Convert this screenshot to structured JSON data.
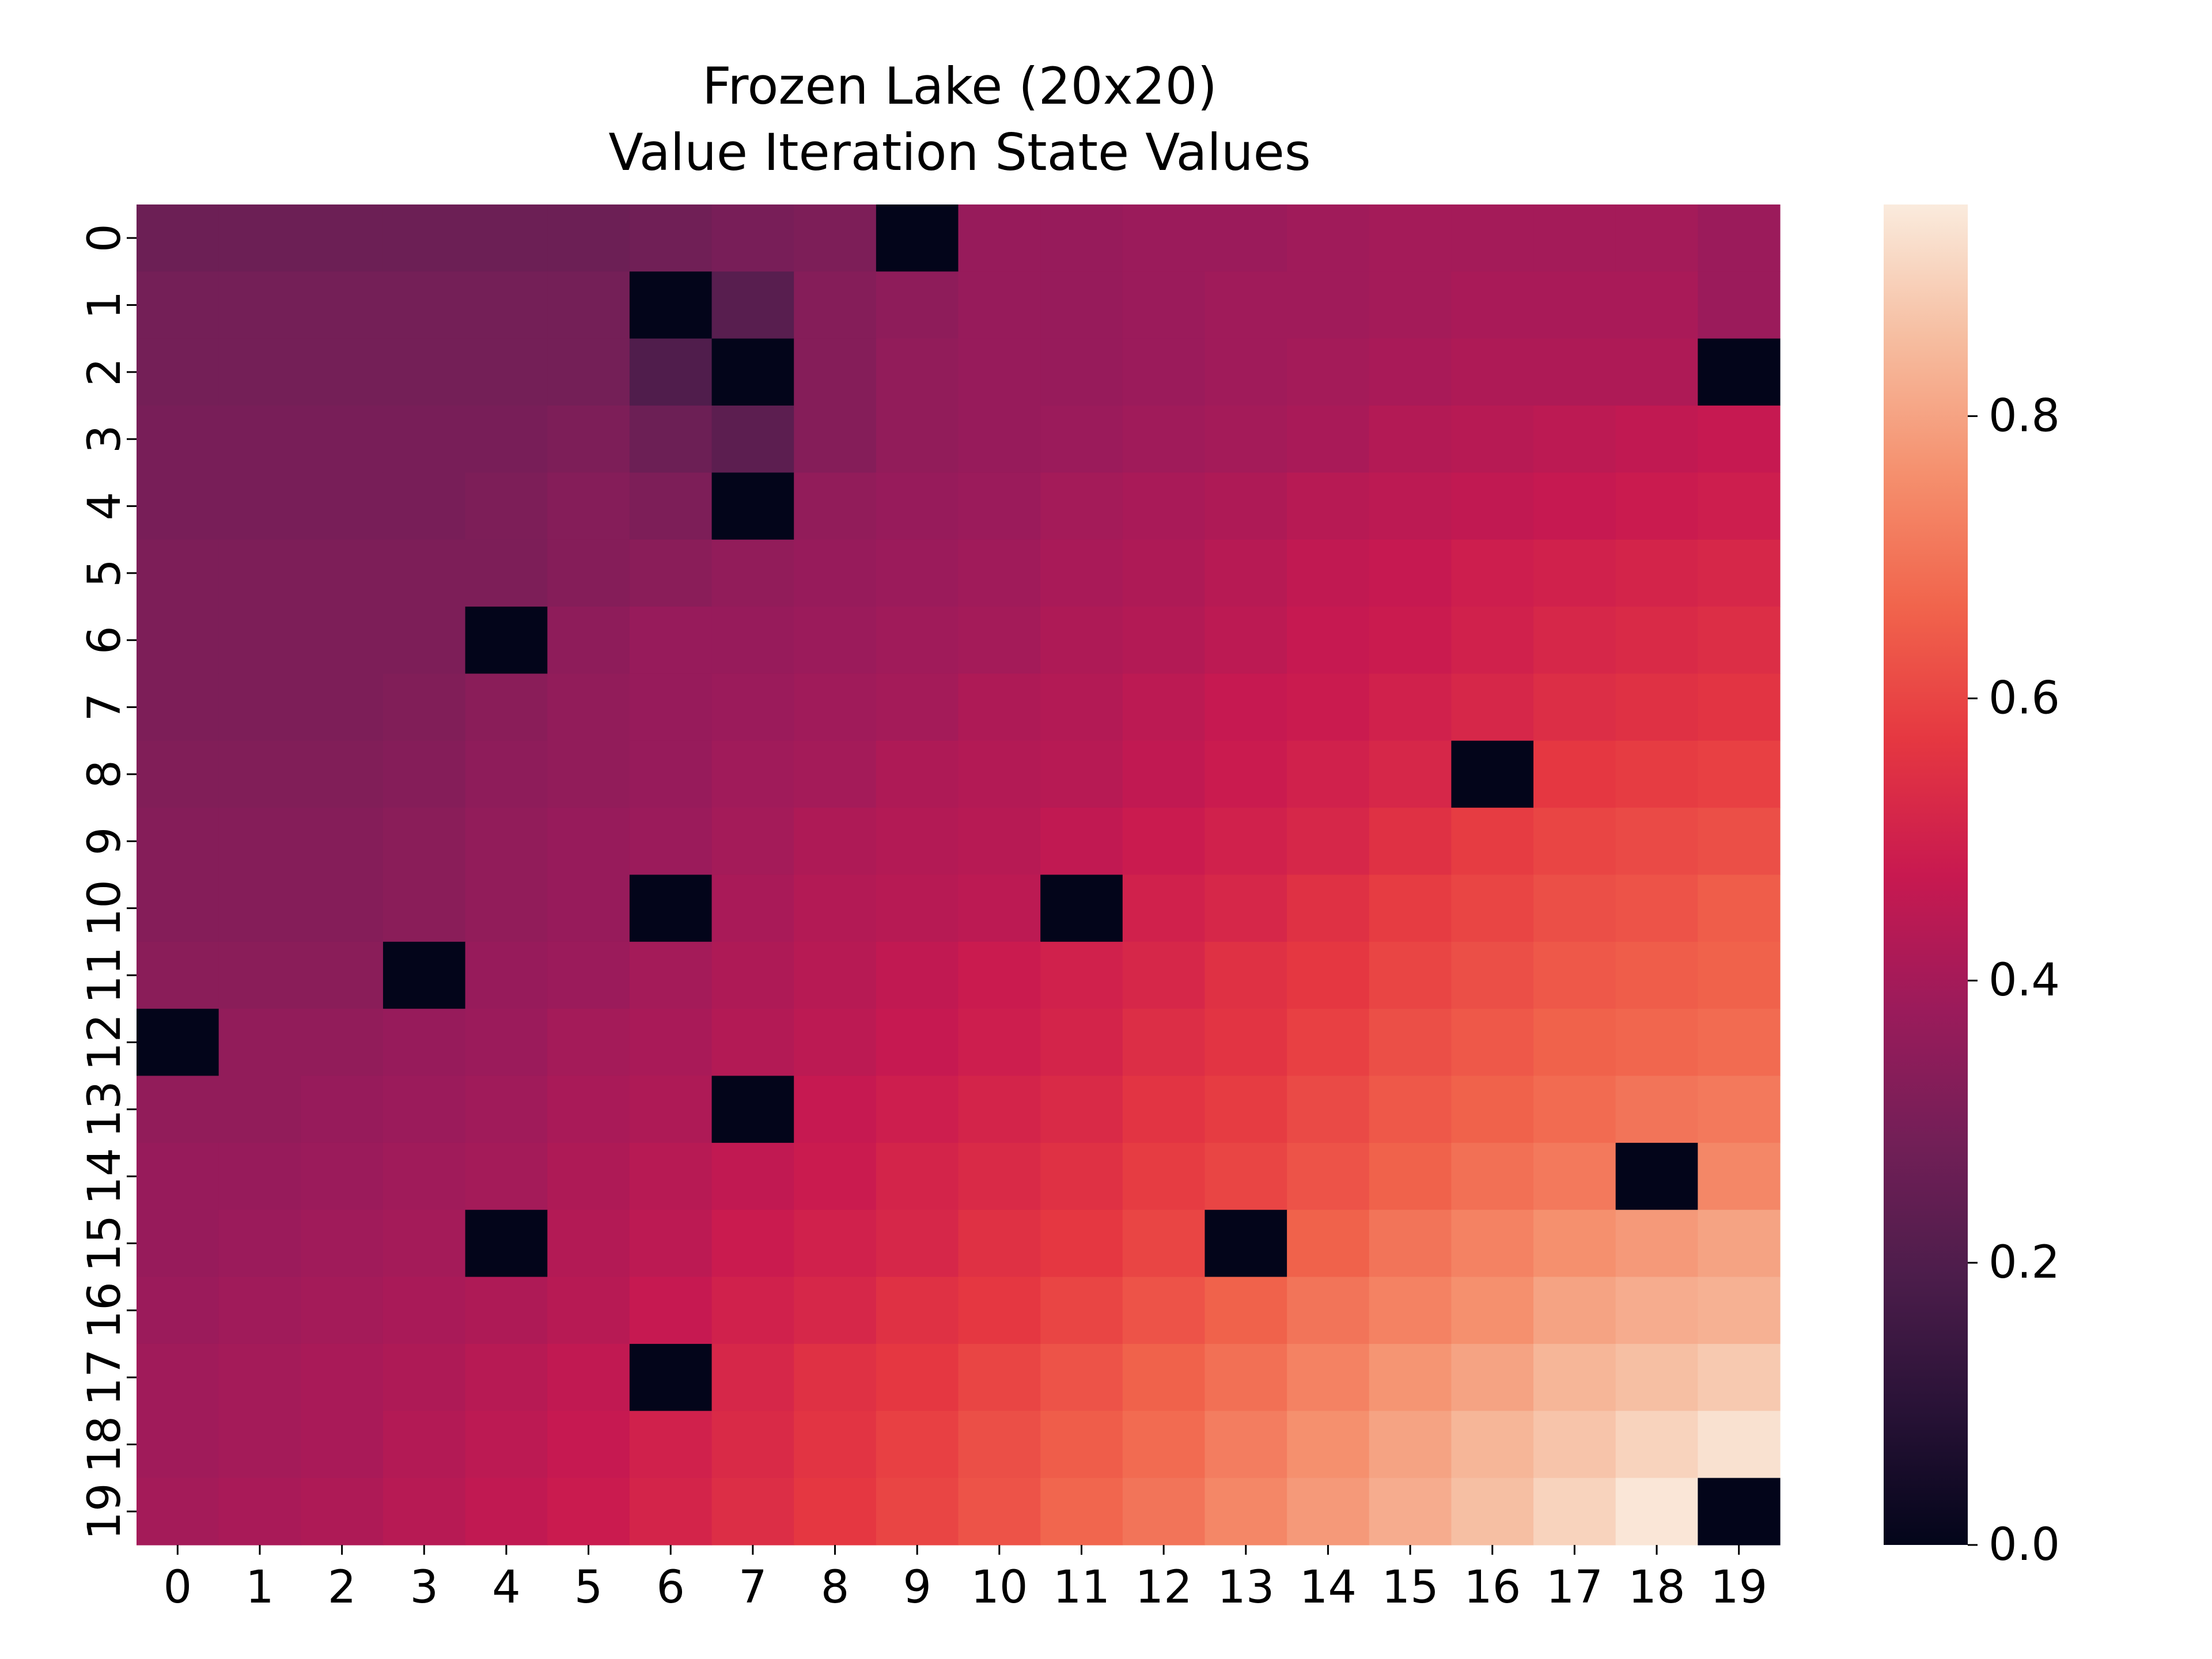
{
  "chart_data": {
    "type": "heatmap",
    "title_line1": "Frozen Lake (20x20)",
    "title_line2": "Value Iteration State Values",
    "x_ticks": [
      "0",
      "1",
      "2",
      "3",
      "4",
      "5",
      "6",
      "7",
      "8",
      "9",
      "10",
      "11",
      "12",
      "13",
      "14",
      "15",
      "16",
      "17",
      "18",
      "19"
    ],
    "y_ticks": [
      "0",
      "1",
      "2",
      "3",
      "4",
      "5",
      "6",
      "7",
      "8",
      "9",
      "10",
      "11",
      "12",
      "13",
      "14",
      "15",
      "16",
      "17",
      "18",
      "19"
    ],
    "colorbar_ticks": [
      "0.0",
      "0.2",
      "0.4",
      "0.6",
      "0.8"
    ],
    "colorbar_tick_values": [
      0.0,
      0.2,
      0.4,
      0.6,
      0.8
    ],
    "vmin": 0.0,
    "vmax": 0.95,
    "colormap": "rocket",
    "values": [
      [
        0.27,
        0.27,
        0.27,
        0.27,
        0.27,
        0.27,
        0.28,
        0.3,
        0.31,
        0.0,
        0.37,
        0.37,
        0.38,
        0.38,
        0.39,
        0.4,
        0.4,
        0.4,
        0.4,
        0.38
      ],
      [
        0.29,
        0.29,
        0.29,
        0.29,
        0.29,
        0.29,
        0.0,
        0.22,
        0.33,
        0.35,
        0.37,
        0.37,
        0.38,
        0.39,
        0.39,
        0.4,
        0.41,
        0.41,
        0.41,
        0.38
      ],
      [
        0.29,
        0.29,
        0.29,
        0.29,
        0.29,
        0.29,
        0.2,
        0.0,
        0.33,
        0.36,
        0.37,
        0.37,
        0.38,
        0.39,
        0.4,
        0.41,
        0.42,
        0.42,
        0.42,
        0.0
      ],
      [
        0.3,
        0.3,
        0.3,
        0.3,
        0.3,
        0.31,
        0.27,
        0.23,
        0.33,
        0.36,
        0.37,
        0.38,
        0.39,
        0.4,
        0.41,
        0.43,
        0.44,
        0.45,
        0.46,
        0.47
      ],
      [
        0.3,
        0.3,
        0.3,
        0.3,
        0.31,
        0.33,
        0.31,
        0.0,
        0.36,
        0.37,
        0.38,
        0.4,
        0.41,
        0.42,
        0.44,
        0.45,
        0.46,
        0.47,
        0.48,
        0.49
      ],
      [
        0.31,
        0.31,
        0.31,
        0.31,
        0.31,
        0.33,
        0.34,
        0.36,
        0.37,
        0.38,
        0.39,
        0.41,
        0.42,
        0.44,
        0.46,
        0.47,
        0.49,
        0.5,
        0.51,
        0.52
      ],
      [
        0.31,
        0.31,
        0.31,
        0.31,
        0.0,
        0.35,
        0.37,
        0.37,
        0.38,
        0.39,
        0.4,
        0.42,
        0.43,
        0.45,
        0.47,
        0.48,
        0.5,
        0.52,
        0.53,
        0.54
      ],
      [
        0.31,
        0.31,
        0.31,
        0.32,
        0.34,
        0.36,
        0.37,
        0.38,
        0.39,
        0.4,
        0.42,
        0.43,
        0.45,
        0.47,
        0.48,
        0.5,
        0.52,
        0.54,
        0.55,
        0.56
      ],
      [
        0.32,
        0.32,
        0.32,
        0.33,
        0.35,
        0.36,
        0.37,
        0.39,
        0.4,
        0.42,
        0.43,
        0.44,
        0.46,
        0.48,
        0.5,
        0.52,
        0.0,
        0.57,
        0.58,
        0.59
      ],
      [
        0.33,
        0.33,
        0.33,
        0.34,
        0.36,
        0.37,
        0.38,
        0.4,
        0.42,
        0.43,
        0.44,
        0.46,
        0.48,
        0.5,
        0.52,
        0.55,
        0.58,
        0.6,
        0.61,
        0.62
      ],
      [
        0.33,
        0.33,
        0.33,
        0.34,
        0.36,
        0.37,
        0.0,
        0.41,
        0.43,
        0.44,
        0.45,
        0.0,
        0.5,
        0.52,
        0.55,
        0.58,
        0.6,
        0.62,
        0.63,
        0.65
      ],
      [
        0.34,
        0.34,
        0.34,
        0.0,
        0.37,
        0.38,
        0.4,
        0.42,
        0.44,
        0.46,
        0.48,
        0.5,
        0.52,
        0.55,
        0.57,
        0.6,
        0.62,
        0.64,
        0.65,
        0.66
      ],
      [
        0.0,
        0.36,
        0.36,
        0.37,
        0.38,
        0.4,
        0.41,
        0.43,
        0.45,
        0.47,
        0.49,
        0.51,
        0.54,
        0.56,
        0.59,
        0.62,
        0.64,
        0.66,
        0.67,
        0.68
      ],
      [
        0.36,
        0.36,
        0.37,
        0.38,
        0.39,
        0.41,
        0.42,
        0.0,
        0.47,
        0.49,
        0.51,
        0.53,
        0.56,
        0.58,
        0.61,
        0.64,
        0.66,
        0.68,
        0.7,
        0.71
      ],
      [
        0.37,
        0.37,
        0.38,
        0.39,
        0.4,
        0.42,
        0.44,
        0.46,
        0.48,
        0.51,
        0.53,
        0.55,
        0.58,
        0.6,
        0.63,
        0.66,
        0.69,
        0.71,
        0.0,
        0.74
      ],
      [
        0.37,
        0.38,
        0.39,
        0.4,
        0.0,
        0.43,
        0.45,
        0.48,
        0.5,
        0.52,
        0.55,
        0.57,
        0.6,
        0.0,
        0.66,
        0.7,
        0.73,
        0.76,
        0.78,
        0.8
      ],
      [
        0.38,
        0.39,
        0.4,
        0.41,
        0.42,
        0.44,
        0.47,
        0.5,
        0.52,
        0.55,
        0.57,
        0.6,
        0.63,
        0.66,
        0.7,
        0.73,
        0.76,
        0.8,
        0.82,
        0.83
      ],
      [
        0.39,
        0.4,
        0.41,
        0.42,
        0.44,
        0.46,
        0.0,
        0.52,
        0.55,
        0.57,
        0.6,
        0.63,
        0.66,
        0.69,
        0.73,
        0.77,
        0.8,
        0.84,
        0.86,
        0.88
      ],
      [
        0.39,
        0.4,
        0.41,
        0.43,
        0.45,
        0.47,
        0.5,
        0.53,
        0.56,
        0.59,
        0.62,
        0.65,
        0.68,
        0.72,
        0.76,
        0.8,
        0.84,
        0.87,
        0.9,
        0.93
      ],
      [
        0.4,
        0.41,
        0.42,
        0.44,
        0.46,
        0.48,
        0.51,
        0.54,
        0.57,
        0.6,
        0.63,
        0.67,
        0.7,
        0.74,
        0.78,
        0.82,
        0.86,
        0.9,
        0.94,
        0.0
      ]
    ]
  }
}
